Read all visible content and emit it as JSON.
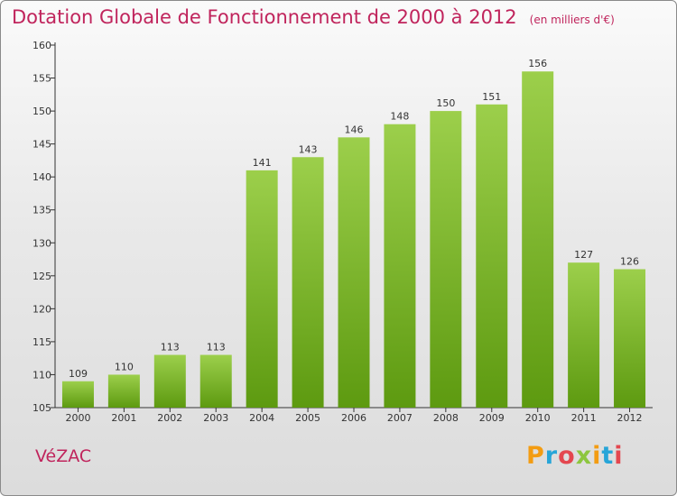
{
  "header": {
    "title": "Dotation Globale de Fonctionnement de 2000 à 2012",
    "unit": "(en milliers d'€)"
  },
  "footer": {
    "place": "VéZAC",
    "logo_text": "Proxiti"
  },
  "colors": {
    "title": "#c0245c",
    "bar_top": "#9ccf4b",
    "bar_bottom": "#5d9a10"
  },
  "chart_data": {
    "type": "bar",
    "title": "Dotation Globale de Fonctionnement de 2000 à 2012",
    "subtitle": "(en milliers d'€)",
    "xlabel": "",
    "ylabel": "",
    "categories": [
      "2000",
      "2001",
      "2002",
      "2003",
      "2004",
      "2005",
      "2006",
      "2007",
      "2008",
      "2009",
      "2010",
      "2011",
      "2012"
    ],
    "values": [
      109,
      110,
      113,
      113,
      141,
      143,
      146,
      148,
      150,
      151,
      156,
      127,
      126
    ],
    "ylim": [
      105,
      160
    ],
    "yticks": [
      105,
      110,
      115,
      120,
      125,
      130,
      135,
      140,
      145,
      150,
      155,
      160
    ],
    "grid": false,
    "legend": "none"
  }
}
